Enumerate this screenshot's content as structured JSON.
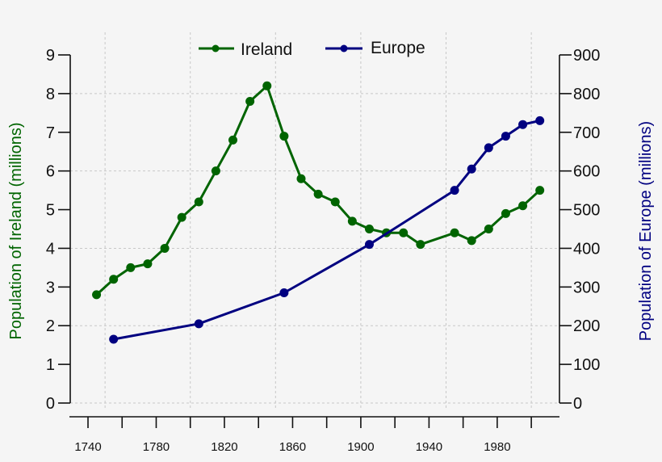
{
  "chart_data": {
    "type": "line",
    "title": "",
    "xlabel": "",
    "ylabel": "Population of Ireland (millions)",
    "ylabel_right": "Population of Europe (millions)",
    "xlim": [
      1732,
      2016
    ],
    "ylim": [
      0,
      9
    ],
    "ylim_right": [
      0,
      900
    ],
    "x_ticks": [
      1740,
      1760,
      1780,
      1800,
      1820,
      1840,
      1860,
      1880,
      1900,
      1920,
      1940,
      1960,
      1980,
      2000
    ],
    "x_tick_labels": [
      "1740",
      "",
      "1780",
      "",
      "1820",
      "",
      "1860",
      "",
      "1900",
      "",
      "1940",
      "",
      "1980",
      ""
    ],
    "x_grid": [
      1750,
      1800,
      1850,
      1900,
      1950,
      2000
    ],
    "y_ticks": [
      0,
      1,
      2,
      3,
      4,
      5,
      6,
      7,
      8,
      9
    ],
    "y_tick_labels": [
      "0",
      "1",
      "2",
      "3",
      "4",
      "5",
      "6",
      "7",
      "8",
      "9"
    ],
    "y_grid": [
      0,
      2,
      4,
      6,
      8
    ],
    "y_ticks_right": [
      0,
      100,
      200,
      300,
      400,
      500,
      600,
      700,
      800,
      900
    ],
    "y_tick_labels_right": [
      "0",
      "100",
      "200",
      "300",
      "400",
      "500",
      "600",
      "700",
      "800",
      "900"
    ],
    "grid": true,
    "legend_position": "top-center",
    "series": [
      {
        "name": "Ireland",
        "axis": "left",
        "color": "#006400",
        "x": [
          1745,
          1755,
          1765,
          1775,
          1785,
          1795,
          1805,
          1815,
          1825,
          1835,
          1845,
          1855,
          1865,
          1875,
          1885,
          1895,
          1905,
          1915,
          1925,
          1935,
          1955,
          1965,
          1975,
          1985,
          1995,
          2005
        ],
        "values": [
          2.8,
          3.2,
          3.5,
          3.6,
          4.0,
          4.8,
          5.2,
          6.0,
          6.8,
          7.8,
          8.2,
          6.9,
          5.8,
          5.4,
          5.2,
          4.7,
          4.5,
          4.4,
          4.4,
          4.1,
          4.4,
          4.2,
          4.5,
          4.9,
          5.1,
          5.5
        ]
      },
      {
        "name": "Europe",
        "axis": "right",
        "color": "#000080",
        "x": [
          1755,
          1805,
          1855,
          1905,
          1955,
          1965,
          1975,
          1985,
          1995,
          2005
        ],
        "values": [
          165,
          205,
          285,
          410,
          550,
          605,
          660,
          690,
          720,
          730
        ]
      }
    ]
  },
  "legend": {
    "items": [
      {
        "label": "Ireland",
        "color": "#006400"
      },
      {
        "label": "Europe",
        "color": "#000080"
      }
    ]
  },
  "axes": {
    "left_title": "Population of Ireland (millions)",
    "right_title": "Population of Europe (millions)"
  }
}
